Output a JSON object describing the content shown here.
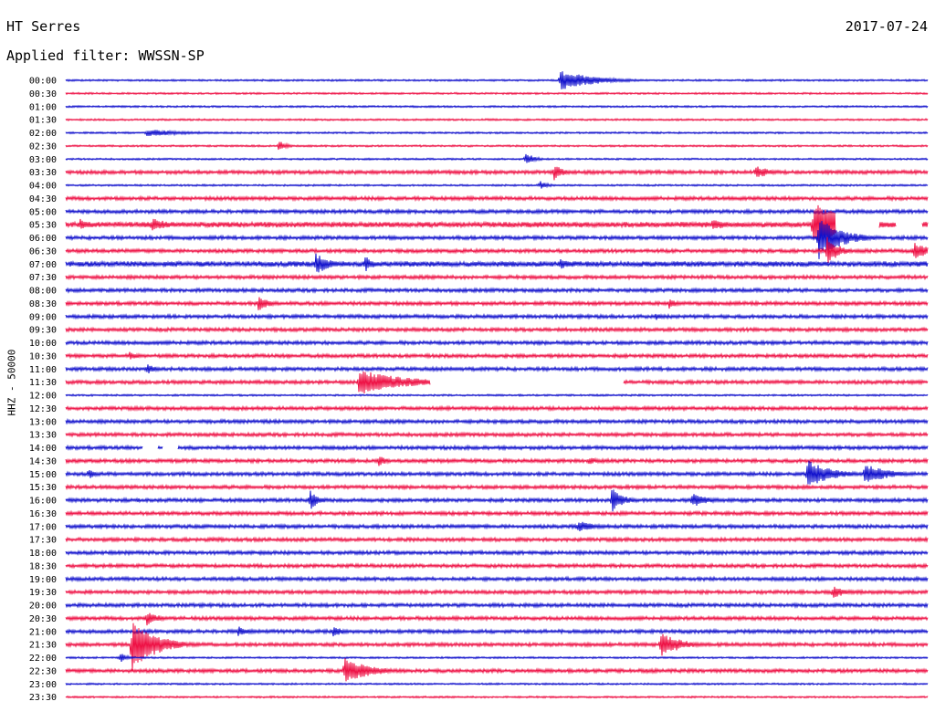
{
  "header": {
    "station": "HT Serres",
    "date": "2017-07-24",
    "filter": "Applied filter: WWSSN-SP",
    "channel": "HHZ - 50000"
  },
  "colors": {
    "even": "#1010cc",
    "odd": "#ee1044"
  },
  "chart_data": {
    "type": "line",
    "title": "HT Serres",
    "subtitle": "Applied filter: WWSSN-SP",
    "ylabel": "HHZ - 50000",
    "row_labels": [
      "00:00",
      "00:30",
      "01:00",
      "01:30",
      "02:00",
      "02:30",
      "03:00",
      "03:30",
      "04:00",
      "04:30",
      "05:00",
      "05:30",
      "06:00",
      "06:30",
      "07:00",
      "07:30",
      "08:00",
      "08:30",
      "09:00",
      "09:30",
      "10:00",
      "10:30",
      "11:00",
      "11:30",
      "12:00",
      "12:30",
      "13:00",
      "13:30",
      "14:00",
      "14:30",
      "15:00",
      "15:30",
      "16:00",
      "16:30",
      "17:00",
      "17:30",
      "18:00",
      "18:30",
      "19:00",
      "19:30",
      "20:00",
      "20:30",
      "21:00",
      "21:30",
      "22:00",
      "22:30",
      "23:00",
      "23:30"
    ],
    "xlim": [
      0,
      30
    ],
    "xunit": "minutes",
    "line_noise": [
      1,
      1,
      0,
      0,
      1,
      1,
      1,
      2,
      1,
      2,
      2,
      3,
      2,
      2,
      3,
      2,
      2,
      2,
      2,
      2,
      2,
      2,
      2,
      2,
      1,
      2,
      2,
      2,
      2,
      2,
      2,
      2,
      2,
      2,
      2,
      2,
      2,
      2,
      2,
      2,
      2,
      2,
      2,
      2,
      1,
      2,
      1,
      1
    ],
    "events": [
      [
        0,
        17.2,
        11,
        1.2
      ],
      [
        4,
        2.8,
        4,
        1.5
      ],
      [
        5,
        7.4,
        6,
        0.3
      ],
      [
        6,
        16.0,
        8,
        0.3
      ],
      [
        7,
        17.0,
        10,
        0.3
      ],
      [
        7,
        24.0,
        8,
        0.5
      ],
      [
        8,
        16.5,
        5,
        0.3
      ],
      [
        11,
        0.5,
        7,
        0.4
      ],
      [
        11,
        3.0,
        9,
        0.5
      ],
      [
        11,
        22.5,
        7,
        0.5
      ],
      [
        11,
        26.0,
        26,
        1.2
      ],
      [
        12,
        26.2,
        24,
        0.8
      ],
      [
        13,
        26.5,
        16,
        0.4
      ],
      [
        13,
        29.5,
        10,
        0.6
      ],
      [
        14,
        8.7,
        12,
        0.5
      ],
      [
        14,
        10.4,
        10,
        0.3
      ],
      [
        14,
        17.2,
        7,
        0.3
      ],
      [
        17,
        6.7,
        9,
        0.4
      ],
      [
        17,
        21.0,
        6,
        0.3
      ],
      [
        18,
        20.5,
        5,
        0.3
      ],
      [
        21,
        2.2,
        5,
        0.4
      ],
      [
        22,
        2.8,
        6,
        0.4
      ],
      [
        23,
        10.2,
        14,
        1.6
      ],
      [
        29,
        10.9,
        6,
        0.3
      ],
      [
        29,
        18.2,
        5,
        0.3
      ],
      [
        30,
        0.8,
        8,
        0.2
      ],
      [
        30,
        25.8,
        16,
        0.8
      ],
      [
        30,
        27.8,
        12,
        0.8
      ],
      [
        32,
        8.5,
        12,
        0.3
      ],
      [
        32,
        19.0,
        14,
        0.4
      ],
      [
        32,
        21.8,
        8,
        0.6
      ],
      [
        34,
        17.8,
        7,
        0.6
      ],
      [
        39,
        26.7,
        9,
        0.4
      ],
      [
        41,
        2.8,
        9,
        0.4
      ],
      [
        42,
        6.0,
        6,
        0.4
      ],
      [
        42,
        9.3,
        6,
        0.4
      ],
      [
        43,
        2.3,
        30,
        0.8
      ],
      [
        43,
        20.7,
        14,
        0.7
      ],
      [
        44,
        1.9,
        7,
        0.2
      ],
      [
        45,
        9.7,
        14,
        0.9
      ]
    ],
    "gaps": [
      [
        11,
        26.8,
        28.3
      ],
      [
        11,
        28.9,
        29.8
      ],
      [
        23,
        12.7,
        19.4
      ],
      [
        28,
        2.7,
        3.2
      ],
      [
        28,
        3.4,
        3.9
      ]
    ]
  }
}
